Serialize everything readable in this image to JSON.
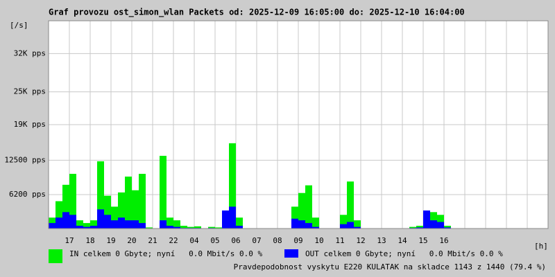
{
  "chart_data": {
    "type": "bar",
    "title": "Graf provozu ost_simon_wlan Packets od: 2025-12-09 16:05:00 do: 2025-12-10 16:04:00",
    "y_label": "[/s]",
    "x_label": "[h]",
    "categories": [
      null,
      null,
      null,
      "17",
      null,
      null,
      "18",
      null,
      null,
      "19",
      null,
      null,
      "20",
      null,
      null,
      "21",
      null,
      null,
      "22",
      null,
      null,
      "04",
      null,
      null,
      "05",
      null,
      null,
      "06",
      null,
      null,
      "07",
      null,
      null,
      "08",
      null,
      null,
      "09",
      null,
      null,
      "10",
      null,
      null,
      "11",
      null,
      null,
      "12",
      null,
      null,
      "13",
      null,
      null,
      "14",
      null,
      null,
      "15",
      null,
      null,
      "16",
      null,
      null,
      null,
      null,
      null,
      null,
      null,
      null,
      null,
      null,
      null,
      null,
      null,
      null
    ],
    "series": [
      {
        "name": "IN celkem 0 Gbyte; nyní   0.0 Mbit/s 0.0 %",
        "color": "#00ee00",
        "values": [
          2000,
          5000,
          8000,
          10000,
          1500,
          1000,
          1500,
          12300,
          6000,
          4000,
          6600,
          9500,
          7000,
          10000,
          200,
          0,
          13300,
          2000,
          1500,
          500,
          300,
          400,
          0,
          300,
          200,
          1500,
          15600,
          2000,
          0,
          0,
          0,
          0,
          0,
          0,
          0,
          4000,
          6500,
          7900,
          2000,
          0,
          0,
          0,
          2500,
          8600,
          1500,
          0,
          0,
          0,
          0,
          0,
          0,
          0,
          300,
          500,
          2500,
          3000,
          2500,
          500,
          0,
          0,
          0,
          0,
          0,
          0,
          0,
          0,
          0,
          0,
          0,
          0,
          0,
          0
        ]
      },
      {
        "name": "OUT celkem 0 Gbyte; nyní   0.0 Mbit/s 0.0 %",
        "color": "#0000ff",
        "values": [
          1000,
          2000,
          3000,
          2500,
          500,
          300,
          500,
          3500,
          2500,
          1500,
          2000,
          1500,
          1500,
          1000,
          0,
          0,
          1500,
          500,
          300,
          100,
          100,
          100,
          0,
          100,
          0,
          3300,
          4000,
          500,
          0,
          0,
          0,
          0,
          0,
          0,
          0,
          1800,
          1500,
          1000,
          300,
          0,
          0,
          0,
          800,
          1200,
          300,
          0,
          0,
          0,
          0,
          0,
          0,
          0,
          100,
          200,
          3300,
          1500,
          1200,
          200,
          0,
          0,
          0,
          0,
          0,
          0,
          0,
          0,
          0,
          0,
          0,
          0,
          0,
          0
        ]
      }
    ],
    "ylim": [
      0,
      38000
    ],
    "yticks": [
      {
        "value": 6200,
        "label": "6200 pps"
      },
      {
        "value": 12500,
        "label": "12500 pps"
      },
      {
        "value": 19000,
        "label": "19K pps"
      },
      {
        "value": 25000,
        "label": "25K pps"
      },
      {
        "value": 32000,
        "label": "32K pps"
      }
    ],
    "grid": true,
    "note": "Pravdepodobnost vyskytu E220 KULATAK na skladce 1143 z 1440 (79.4 %)",
    "note_color": "#ff0000"
  }
}
